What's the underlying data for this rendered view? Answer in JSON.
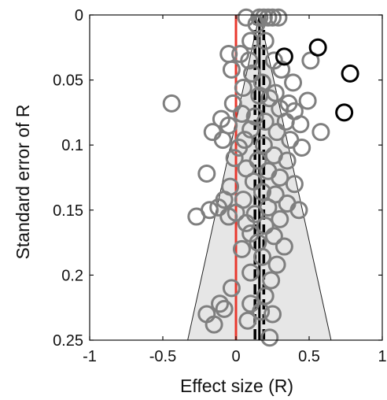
{
  "chart_data": {
    "type": "scatter",
    "subtype": "funnel-plot",
    "title": "",
    "xlabel": "Effect size (R)",
    "ylabel": "Standard error of R",
    "xlim": [
      -1,
      1
    ],
    "ylim": [
      0,
      0.25
    ],
    "y_reversed": true,
    "x_ticks": [
      "-1",
      "-0.5",
      "0",
      "0.5",
      "1"
    ],
    "y_ticks": [
      "0",
      "0.05",
      "0.1",
      "0.15",
      "0.2",
      "0.25"
    ],
    "grid": false,
    "legend": "none",
    "funnel": {
      "apex_x": 0.16,
      "apex_se": 0,
      "base_left_x": -0.33,
      "base_right_x": 0.65,
      "base_se": 0.25,
      "fill_color": "#e6e6e6"
    },
    "reference_lines": [
      {
        "name": "null effect",
        "x": 0,
        "color": "#e8382e",
        "style": "solid"
      },
      {
        "name": "pooled estimate",
        "x": 0.16,
        "color": "#000000",
        "style": "solid"
      },
      {
        "name": "ci-low",
        "x": 0.13,
        "color": "#000000",
        "style": "dashed"
      },
      {
        "name": "ci-high",
        "x": 0.19,
        "color": "#000000",
        "style": "dashed"
      }
    ],
    "series": [
      {
        "group": "studies",
        "color": "#7f7f7f",
        "points": [
          {
            "x": 0.07,
            "y": 0.002
          },
          {
            "x": 0.16,
            "y": 0.002
          },
          {
            "x": 0.19,
            "y": 0.002
          },
          {
            "x": 0.22,
            "y": 0.002
          },
          {
            "x": 0.25,
            "y": 0.002
          },
          {
            "x": 0.29,
            "y": 0.002
          },
          {
            "x": 0.14,
            "y": 0.007
          },
          {
            "x": 0.1,
            "y": 0.02
          },
          {
            "x": 0.2,
            "y": 0.02
          },
          {
            "x": 0.03,
            "y": 0.03
          },
          {
            "x": -0.05,
            "y": 0.03
          },
          {
            "x": 0.09,
            "y": 0.035
          },
          {
            "x": 0.26,
            "y": 0.035
          },
          {
            "x": 0.51,
            "y": 0.035
          },
          {
            "x": 0.31,
            "y": 0.042
          },
          {
            "x": -0.03,
            "y": 0.042
          },
          {
            "x": 0.11,
            "y": 0.045
          },
          {
            "x": 0.39,
            "y": 0.052
          },
          {
            "x": 0.18,
            "y": 0.052
          },
          {
            "x": 0.05,
            "y": 0.056
          },
          {
            "x": 0.27,
            "y": 0.06
          },
          {
            "x": 0.16,
            "y": 0.062
          },
          {
            "x": 0.23,
            "y": 0.064
          },
          {
            "x": 0.49,
            "y": 0.066
          },
          {
            "x": -0.44,
            "y": 0.068
          },
          {
            "x": -0.02,
            "y": 0.068
          },
          {
            "x": 0.36,
            "y": 0.068
          },
          {
            "x": 0.3,
            "y": 0.072
          },
          {
            "x": 0.4,
            "y": 0.074
          },
          {
            "x": 0.04,
            "y": 0.076
          },
          {
            "x": 0.13,
            "y": 0.078
          },
          {
            "x": -0.1,
            "y": 0.08
          },
          {
            "x": 0.2,
            "y": 0.082
          },
          {
            "x": 0.34,
            "y": 0.082
          },
          {
            "x": 0.44,
            "y": 0.084
          },
          {
            "x": -0.05,
            "y": 0.085
          },
          {
            "x": 0.1,
            "y": 0.088
          },
          {
            "x": -0.16,
            "y": 0.09
          },
          {
            "x": 0.28,
            "y": 0.09
          },
          {
            "x": 0.58,
            "y": 0.09
          },
          {
            "x": -0.09,
            "y": 0.096
          },
          {
            "x": 0.06,
            "y": 0.096
          },
          {
            "x": 0.37,
            "y": 0.096
          },
          {
            "x": 0.19,
            "y": 0.1
          },
          {
            "x": 0.02,
            "y": 0.102
          },
          {
            "x": 0.45,
            "y": 0.102
          },
          {
            "x": 0.26,
            "y": 0.108
          },
          {
            "x": -0.01,
            "y": 0.11
          },
          {
            "x": 0.15,
            "y": 0.112
          },
          {
            "x": 0.35,
            "y": 0.112
          },
          {
            "x": 0.07,
            "y": 0.118
          },
          {
            "x": 0.22,
            "y": 0.12
          },
          {
            "x": -0.2,
            "y": 0.122
          },
          {
            "x": 0.3,
            "y": 0.125
          },
          {
            "x": 0.12,
            "y": 0.128
          },
          {
            "x": 0.4,
            "y": 0.13
          },
          {
            "x": -0.04,
            "y": 0.132
          },
          {
            "x": 0.18,
            "y": 0.136
          },
          {
            "x": 0.27,
            "y": 0.138
          },
          {
            "x": -0.08,
            "y": 0.142
          },
          {
            "x": 0.05,
            "y": 0.142
          },
          {
            "x": 0.35,
            "y": 0.145
          },
          {
            "x": -0.12,
            "y": 0.148
          },
          {
            "x": 0.22,
            "y": 0.148
          },
          {
            "x": -0.18,
            "y": 0.15
          },
          {
            "x": 0.43,
            "y": 0.15
          },
          {
            "x": 0.0,
            "y": 0.152
          },
          {
            "x": 0.13,
            "y": 0.153
          },
          {
            "x": -0.27,
            "y": 0.155
          },
          {
            "x": -0.05,
            "y": 0.155
          },
          {
            "x": 0.3,
            "y": 0.157
          },
          {
            "x": 0.07,
            "y": 0.16
          },
          {
            "x": 0.2,
            "y": 0.162
          },
          {
            "x": 0.1,
            "y": 0.168
          },
          {
            "x": 0.26,
            "y": 0.17
          },
          {
            "x": 0.15,
            "y": 0.175
          },
          {
            "x": 0.33,
            "y": 0.178
          },
          {
            "x": 0.04,
            "y": 0.18
          },
          {
            "x": 0.18,
            "y": 0.186
          },
          {
            "x": 0.28,
            "y": 0.192
          },
          {
            "x": 0.1,
            "y": 0.198
          },
          {
            "x": 0.24,
            "y": 0.204
          },
          {
            "x": -0.03,
            "y": 0.21
          },
          {
            "x": 0.2,
            "y": 0.216
          },
          {
            "x": 0.1,
            "y": 0.222
          },
          {
            "x": -0.11,
            "y": 0.222
          },
          {
            "x": -0.08,
            "y": 0.226
          },
          {
            "x": 0.17,
            "y": 0.228
          },
          {
            "x": -0.2,
            "y": 0.23
          },
          {
            "x": 0.25,
            "y": 0.23
          },
          {
            "x": 0.08,
            "y": 0.235
          },
          {
            "x": -0.15,
            "y": 0.238
          },
          {
            "x": 0.23,
            "y": 0.248
          }
        ]
      },
      {
        "group": "imputed studies",
        "color": "#000000",
        "points": [
          {
            "x": 0.33,
            "y": 0.032
          },
          {
            "x": 0.56,
            "y": 0.025
          },
          {
            "x": 0.78,
            "y": 0.045
          },
          {
            "x": 0.74,
            "y": 0.075
          }
        ]
      }
    ]
  }
}
